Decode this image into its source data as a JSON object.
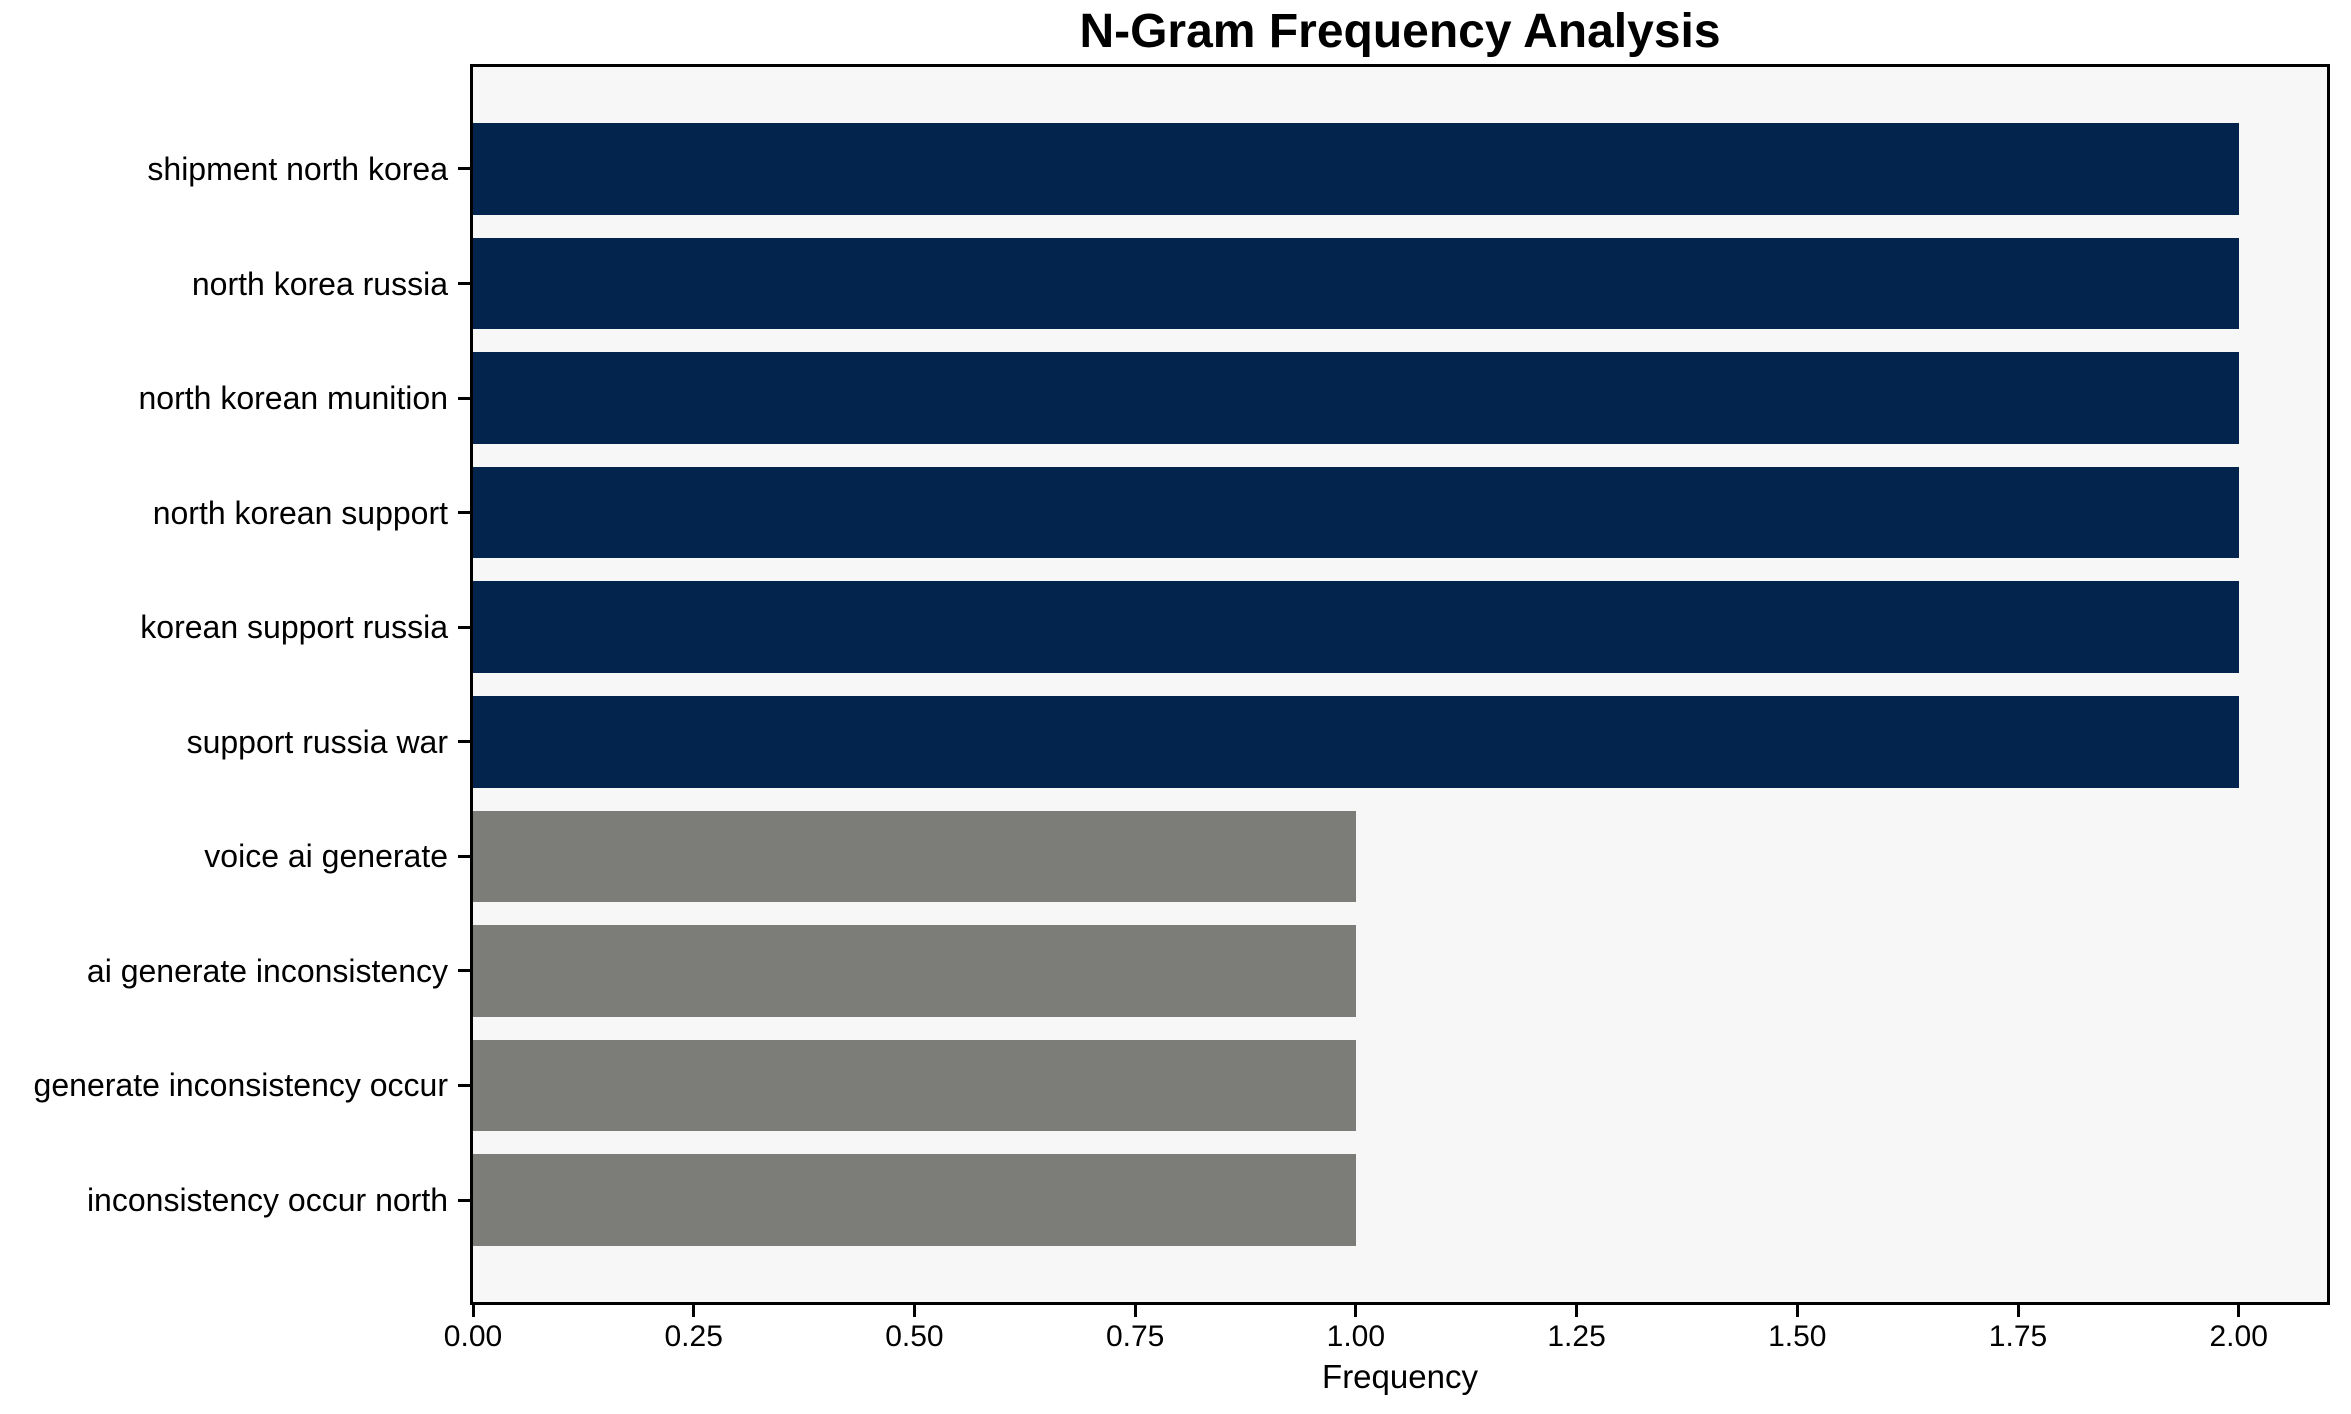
{
  "chart_data": {
    "type": "bar",
    "orientation": "horizontal",
    "title": "N-Gram Frequency Analysis",
    "xlabel": "Frequency",
    "ylabel": "",
    "categories": [
      "shipment north korea",
      "north korea russia",
      "north korean munition",
      "north korean support",
      "korean support russia",
      "support russia war",
      "voice ai generate",
      "ai generate inconsistency",
      "generate inconsistency occur",
      "inconsistency occur north"
    ],
    "values": [
      2,
      2,
      2,
      2,
      2,
      2,
      1,
      1,
      1,
      1
    ],
    "bar_colors": [
      "#03244d",
      "#03244d",
      "#03244d",
      "#03244d",
      "#03244d",
      "#03244d",
      "#7c7c79",
      "#7c7c79",
      "#7c7c79",
      "#7c7c79"
    ],
    "xlim": [
      0,
      2.1
    ],
    "xtick_values": [
      0,
      0.25,
      0.5,
      0.75,
      1.0,
      1.25,
      1.5,
      1.75,
      2.0
    ],
    "xtick_labels": [
      "0.00",
      "0.25",
      "0.50",
      "0.75",
      "1.00",
      "1.25",
      "1.50",
      "1.75",
      "2.00"
    ],
    "grid": false,
    "legend": "none",
    "colors": {
      "bar_primary": "#03244d",
      "bar_secondary": "#7c7c79",
      "plot_background": "#f7f7f7",
      "figure_background": "#ffffff",
      "spine": "#000000",
      "text": "#000000"
    }
  }
}
